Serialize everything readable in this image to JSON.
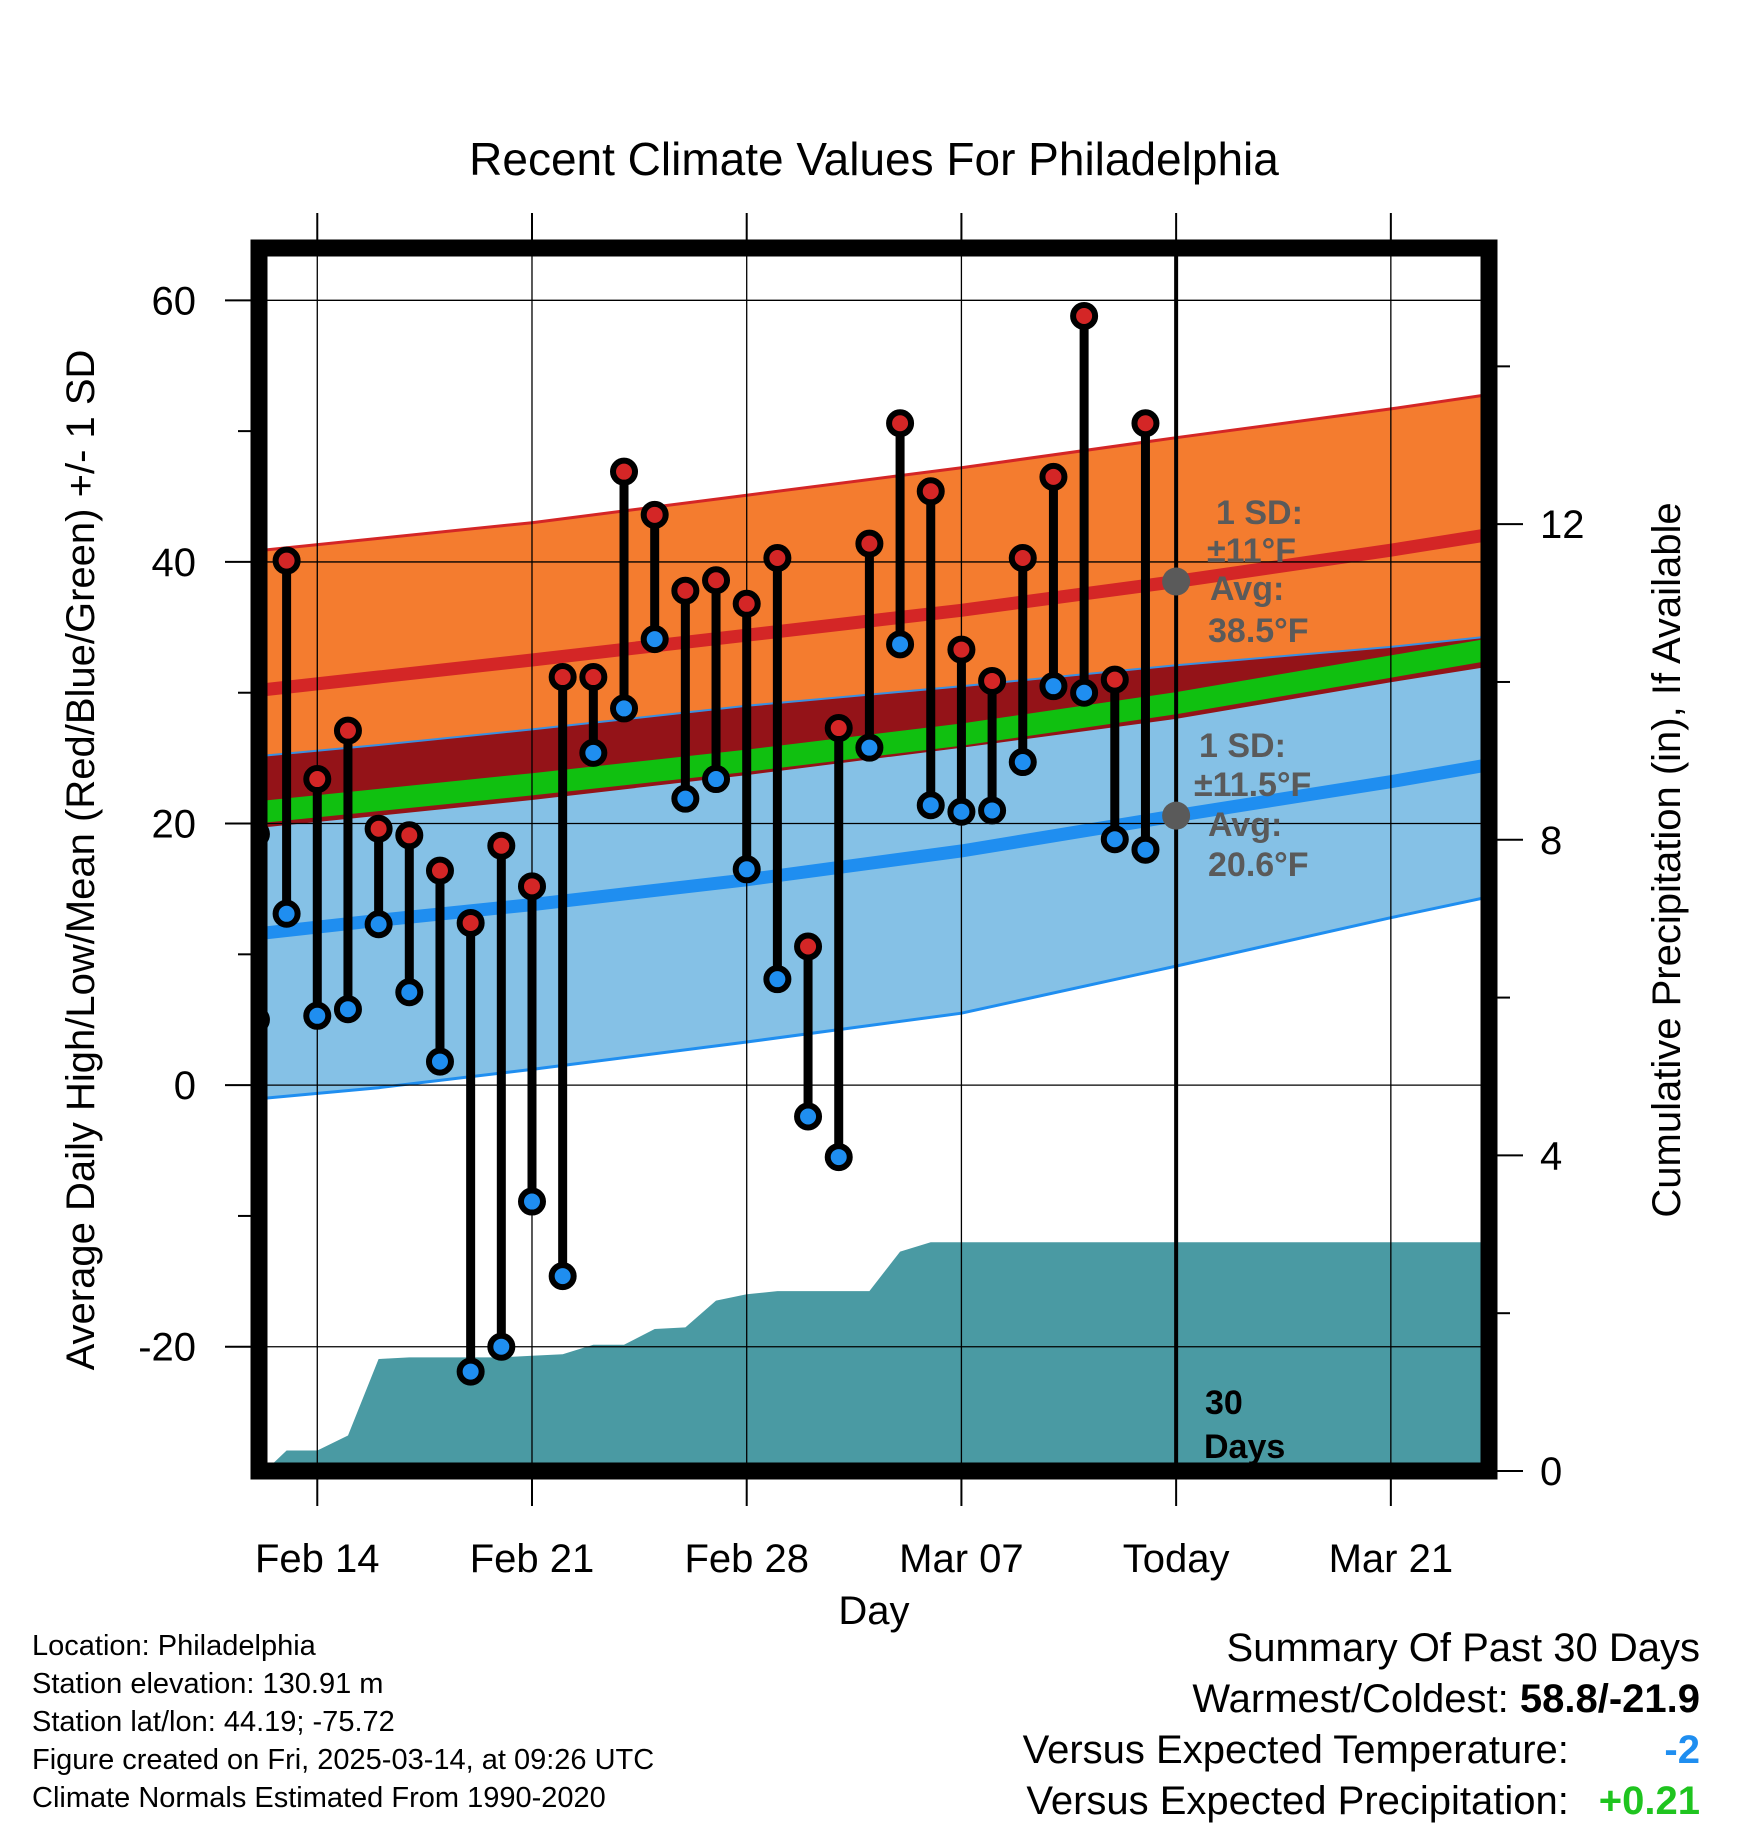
{
  "chart_data": {
    "type": "line",
    "title": "Recent Climate Values For Philadelphia",
    "xlabel": "Day",
    "ylabel": "Average Daily High/Low/Mean (Red/Blue/Green) +/- 1 SD",
    "y2label": "Cumulative Precipitation (in), If Available",
    "ylim": [
      -29.5,
      64
    ],
    "y2lim": [
      0,
      15.5
    ],
    "xlim": [
      -1.9,
      38.2
    ],
    "x_tick_labels": [
      {
        "day": 0,
        "label": "Feb 14"
      },
      {
        "day": 7,
        "label": "Feb 21"
      },
      {
        "day": 14,
        "label": "Feb 28"
      },
      {
        "day": 21,
        "label": "Mar 07"
      },
      {
        "day": 28,
        "label": "Today"
      },
      {
        "day": 35,
        "label": "Mar 21"
      }
    ],
    "y_ticks": [
      -20,
      0,
      20,
      40,
      60
    ],
    "y_tick_labels": [
      "-20",
      "0",
      "20",
      "40",
      "60"
    ],
    "y2_ticks": [
      0,
      4,
      8,
      12
    ],
    "y2_tick_labels": [
      "0",
      "4",
      "8",
      "12"
    ],
    "today_day": 28,
    "normals": {
      "day": [
        -2.6,
        2,
        7,
        14,
        21,
        28,
        35,
        38.2
      ],
      "high_mean": [
        30.0,
        31.2,
        32.5,
        34.4,
        36.3,
        38.5,
        40.9,
        42.1
      ],
      "high_upper": [
        40.7,
        41.8,
        43.0,
        45.1,
        47.2,
        49.5,
        51.7,
        52.8
      ],
      "high_lower": [
        19.5,
        20.6,
        21.8,
        23.7,
        25.8,
        28.0,
        30.8,
        32.0
      ],
      "low_mean": [
        11.4,
        12.6,
        13.8,
        15.7,
        17.9,
        20.6,
        23.2,
        24.5
      ],
      "low_upper": [
        25.0,
        26.0,
        27.2,
        29.0,
        30.5,
        32.1,
        33.5,
        34.3
      ],
      "low_lower": [
        -1.2,
        -0.2,
        1.2,
        3.3,
        5.5,
        9.1,
        12.8,
        14.4
      ],
      "mean_mean": [
        20.7,
        21.8,
        23.0,
        24.8,
        26.8,
        29.2,
        32.0,
        33.3
      ]
    },
    "series": [
      {
        "name": "High",
        "color": "#d42626",
        "x": [
          -2,
          -1,
          0,
          1,
          2,
          3,
          4,
          5,
          6,
          7,
          8,
          9,
          10,
          11,
          12,
          13,
          14,
          15,
          16,
          17,
          18,
          19,
          20,
          21,
          22,
          23,
          24,
          25,
          26,
          27
        ],
        "values": [
          19.2,
          40.1,
          23.4,
          27.1,
          19.6,
          19.1,
          16.4,
          12.4,
          18.3,
          15.2,
          31.2,
          31.2,
          46.9,
          43.6,
          37.8,
          38.6,
          36.8,
          40.3,
          10.6,
          27.3,
          41.4,
          50.6,
          45.4,
          33.3,
          30.9,
          40.3,
          46.5,
          58.8,
          31.0,
          50.6
        ]
      },
      {
        "name": "Low",
        "color": "#1f8ef0",
        "x": [
          -2,
          -1,
          0,
          1,
          2,
          3,
          4,
          5,
          6,
          7,
          8,
          9,
          10,
          11,
          12,
          13,
          14,
          15,
          16,
          17,
          18,
          19,
          20,
          21,
          22,
          23,
          24,
          25,
          26,
          27
        ],
        "values": [
          5.0,
          13.1,
          5.3,
          5.8,
          12.3,
          7.1,
          1.8,
          -21.9,
          -20.0,
          -8.9,
          -14.6,
          25.4,
          28.8,
          34.1,
          21.9,
          23.4,
          16.5,
          8.1,
          -2.4,
          -5.5,
          25.8,
          33.7,
          21.4,
          20.9,
          21.0,
          24.7,
          30.5,
          30.0,
          18.8,
          18.0
        ]
      }
    ],
    "precipitation": {
      "name": "Cumulative Precipitation",
      "color": "#4a9aa3",
      "x": [
        -1.7,
        -1.0,
        0.0,
        1.0,
        2.0,
        3.0,
        4.0,
        5.0,
        6.0,
        7.0,
        8.0,
        9.0,
        10.0,
        11.0,
        12.0,
        13.0,
        14.0,
        15.0,
        16.0,
        17.0,
        18.0,
        19.0,
        20.0,
        21.0,
        22.0,
        28.0,
        38.2
      ],
      "values": [
        0.0,
        0.26,
        0.26,
        0.45,
        1.42,
        1.44,
        1.44,
        1.44,
        1.44,
        1.46,
        1.48,
        1.6,
        1.6,
        1.8,
        1.82,
        2.16,
        2.24,
        2.28,
        2.28,
        2.28,
        2.28,
        2.78,
        2.9,
        2.9,
        2.9,
        2.9,
        2.9
      ]
    },
    "annotations": [
      {
        "id": "high_sd_1",
        "text": "1 SD:"
      },
      {
        "id": "high_sd_2",
        "text": "±11°F"
      },
      {
        "id": "high_avg_1",
        "text": "Avg:"
      },
      {
        "id": "high_avg_2",
        "text": "38.5°F"
      },
      {
        "id": "low_sd_1",
        "text": "1 SD:"
      },
      {
        "id": "low_sd_2",
        "text": "±11.5°F"
      },
      {
        "id": "low_avg_1",
        "text": "Avg:"
      },
      {
        "id": "low_avg_2",
        "text": "20.6°F"
      },
      {
        "id": "days_1",
        "text": "30"
      },
      {
        "id": "days_2",
        "text": "Days"
      }
    ]
  },
  "station_info": {
    "location": "Location: Philadelphia",
    "elevation": "Station elevation: 130.91 m",
    "latlon": "Station lat/lon: 44.19; -75.72",
    "created": "Figure created on Fri, 2025-03-14, at 09:26 UTC",
    "normals": "Climate Normals Estimated From 1990-2020"
  },
  "summary": {
    "title": "Summary Of Past 30 Days",
    "warmest_label": "Warmest/Coldest:",
    "warmest_value": "58.8/-21.9",
    "temp_label": "Versus Expected Temperature:",
    "temp_value": "-2",
    "temp_color": "#1f8ef0",
    "precip_label": "Versus Expected Precipitation:",
    "precip_value": "+0.21",
    "precip_color": "#1fc41f"
  }
}
